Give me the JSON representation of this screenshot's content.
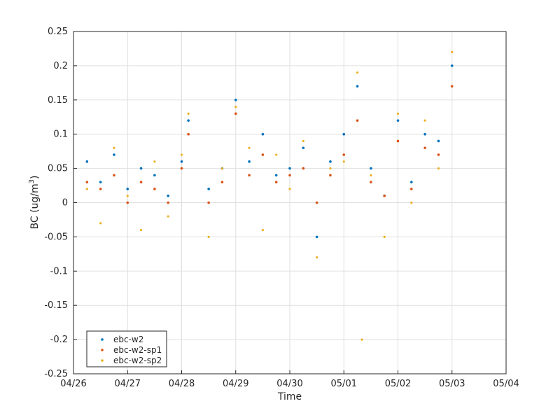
{
  "chart_data": {
    "type": "scatter",
    "xlabel": "Time",
    "ylabel": "BC (ug/m",
    "ylabel_superscript": "3",
    "ylabel_suffix": ")",
    "x_ticks": [
      "04/26",
      "04/27",
      "04/28",
      "04/29",
      "04/30",
      "05/01",
      "05/02",
      "05/03",
      "05/04"
    ],
    "xlim": [
      "04/26 00:00",
      "05/04 00:00"
    ],
    "ylim": [
      -0.25,
      0.25
    ],
    "y_ticks": [
      "-0.25",
      "-0.2",
      "-0.15",
      "-0.1",
      "-0.05",
      "0",
      "0.05",
      "0.1",
      "0.15",
      "0.2",
      "0.25"
    ],
    "grid": true,
    "legend_position": "bottom-left",
    "series": [
      {
        "name": "ebc-w2",
        "color": "#0072BD",
        "points": [
          [
            "04/26 06:00",
            0.06
          ],
          [
            "04/26 12:00",
            0.03
          ],
          [
            "04/26 18:00",
            0.07
          ],
          [
            "04/27 00:00",
            0.02
          ],
          [
            "04/27 06:00",
            0.05
          ],
          [
            "04/27 12:00",
            0.04
          ],
          [
            "04/27 18:00",
            0.01
          ],
          [
            "04/28 00:00",
            0.06
          ],
          [
            "04/28 03:00",
            0.12
          ],
          [
            "04/28 12:00",
            0.02
          ],
          [
            "04/28 18:00",
            0.05
          ],
          [
            "04/29 00:00",
            0.15
          ],
          [
            "04/29 06:00",
            0.06
          ],
          [
            "04/29 12:00",
            0.1
          ],
          [
            "04/29 18:00",
            0.04
          ],
          [
            "04/30 00:00",
            0.05
          ],
          [
            "04/30 06:00",
            0.08
          ],
          [
            "04/30 12:00",
            -0.05
          ],
          [
            "04/30 18:00",
            0.06
          ],
          [
            "05/01 00:00",
            0.1
          ],
          [
            "05/01 06:00",
            0.17
          ],
          [
            "05/01 12:00",
            0.05
          ],
          [
            "05/01 18:00",
            0.01
          ],
          [
            "05/02 00:00",
            0.12
          ],
          [
            "05/02 06:00",
            0.03
          ],
          [
            "05/02 12:00",
            0.1
          ],
          [
            "05/02 18:00",
            0.09
          ],
          [
            "05/03 00:00",
            0.2
          ]
        ]
      },
      {
        "name": "ebc-w2-sp1",
        "color": "#D95319",
        "points": [
          [
            "04/26 06:00",
            0.03
          ],
          [
            "04/26 12:00",
            0.02
          ],
          [
            "04/26 18:00",
            0.04
          ],
          [
            "04/27 00:00",
            0.0
          ],
          [
            "04/27 06:00",
            0.03
          ],
          [
            "04/27 12:00",
            0.02
          ],
          [
            "04/27 18:00",
            0.0
          ],
          [
            "04/28 00:00",
            0.05
          ],
          [
            "04/28 03:00",
            0.1
          ],
          [
            "04/28 12:00",
            0.0
          ],
          [
            "04/28 18:00",
            0.03
          ],
          [
            "04/29 00:00",
            0.13
          ],
          [
            "04/29 06:00",
            0.04
          ],
          [
            "04/29 12:00",
            0.07
          ],
          [
            "04/29 18:00",
            0.03
          ],
          [
            "04/30 00:00",
            0.04
          ],
          [
            "04/30 06:00",
            0.05
          ],
          [
            "04/30 12:00",
            0.0
          ],
          [
            "04/30 18:00",
            0.04
          ],
          [
            "05/01 00:00",
            0.07
          ],
          [
            "05/01 06:00",
            0.12
          ],
          [
            "05/01 12:00",
            0.03
          ],
          [
            "05/01 18:00",
            0.01
          ],
          [
            "05/02 00:00",
            0.09
          ],
          [
            "05/02 06:00",
            0.02
          ],
          [
            "05/02 12:00",
            0.08
          ],
          [
            "05/02 18:00",
            0.07
          ],
          [
            "05/03 00:00",
            0.17
          ]
        ]
      },
      {
        "name": "ebc-w2-sp2",
        "color": "#EDB120",
        "points": [
          [
            "04/26 06:00",
            0.02
          ],
          [
            "04/26 12:00",
            -0.03
          ],
          [
            "04/26 18:00",
            0.08
          ],
          [
            "04/27 00:00",
            0.01
          ],
          [
            "04/27 06:00",
            -0.04
          ],
          [
            "04/27 12:00",
            0.06
          ],
          [
            "04/27 18:00",
            -0.02
          ],
          [
            "04/28 00:00",
            0.07
          ],
          [
            "04/28 03:00",
            0.13
          ],
          [
            "04/28 12:00",
            -0.05
          ],
          [
            "04/28 18:00",
            0.05
          ],
          [
            "04/29 00:00",
            0.14
          ],
          [
            "04/29 06:00",
            0.08
          ],
          [
            "04/29 12:00",
            -0.04
          ],
          [
            "04/29 18:00",
            0.07
          ],
          [
            "04/30 00:00",
            0.02
          ],
          [
            "04/30 06:00",
            0.09
          ],
          [
            "04/30 12:00",
            -0.08
          ],
          [
            "04/30 18:00",
            0.05
          ],
          [
            "05/01 00:00",
            0.06
          ],
          [
            "05/01 06:00",
            0.19
          ],
          [
            "05/01 08:00",
            -0.2
          ],
          [
            "05/01 12:00",
            0.04
          ],
          [
            "05/01 18:00",
            -0.05
          ],
          [
            "05/02 00:00",
            0.13
          ],
          [
            "05/02 06:00",
            0.0
          ],
          [
            "05/02 12:00",
            0.12
          ],
          [
            "05/02 18:00",
            0.05
          ],
          [
            "05/03 00:00",
            0.22
          ]
        ]
      }
    ]
  }
}
